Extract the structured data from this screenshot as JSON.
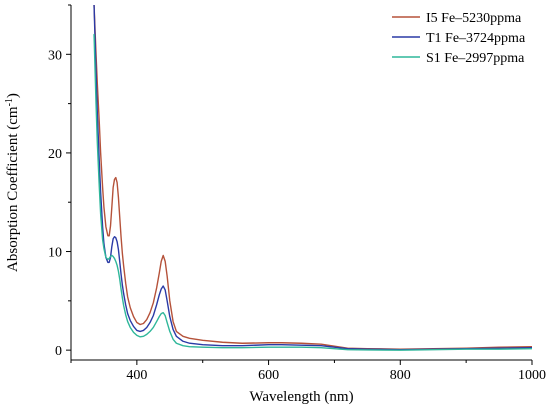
{
  "chart_data": {
    "type": "line",
    "xlabel": "Wavelength (nm)",
    "ylabel_main": "Absorption Coefficient (cm",
    "ylabel_sup": "-1",
    "ylabel_end": ")",
    "xlim": [
      300,
      1000
    ],
    "ylim": [
      -1,
      35
    ],
    "xticks": [
      400,
      600,
      800,
      1000
    ],
    "yticks": [
      0,
      10,
      20,
      30
    ],
    "grid": false,
    "legend_position": "top-right",
    "series": [
      {
        "name": "I5  Fe–5230ppma",
        "color": "#b5523a",
        "x": [
          335,
          338,
          340,
          343,
          345,
          348,
          350,
          353,
          356,
          358,
          360,
          362,
          364,
          366,
          368,
          370,
          372,
          374,
          376,
          378,
          380,
          383,
          386,
          390,
          395,
          400,
          405,
          410,
          415,
          420,
          425,
          430,
          434,
          437,
          440,
          443,
          446,
          450,
          455,
          460,
          470,
          480,
          500,
          530,
          560,
          600,
          620,
          650,
          680,
          700,
          720,
          750,
          800,
          850,
          900,
          950,
          1000
        ],
        "y": [
          35,
          30,
          27,
          23,
          20,
          16.5,
          14.5,
          12.5,
          11.6,
          11.6,
          12.6,
          14.5,
          16.5,
          17.3,
          17.5,
          17,
          15.5,
          13.5,
          11.5,
          9.8,
          8.5,
          6.8,
          5.4,
          4.3,
          3.4,
          2.8,
          2.6,
          2.7,
          3.1,
          3.8,
          4.8,
          6.3,
          7.8,
          9,
          9.6,
          9,
          7.5,
          5,
          2.9,
          1.9,
          1.4,
          1.2,
          1,
          0.8,
          0.7,
          0.75,
          0.75,
          0.7,
          0.6,
          0.4,
          0.2,
          0.15,
          0.1,
          0.15,
          0.2,
          0.3,
          0.35
        ]
      },
      {
        "name": "T1  Fe–3724ppma",
        "color": "#2a3aa6",
        "x": [
          335,
          338,
          340,
          343,
          345,
          348,
          350,
          353,
          356,
          358,
          360,
          362,
          364,
          366,
          368,
          370,
          372,
          374,
          376,
          378,
          380,
          383,
          386,
          390,
          395,
          400,
          405,
          410,
          415,
          420,
          425,
          430,
          434,
          437,
          440,
          443,
          446,
          450,
          455,
          460,
          470,
          480,
          500,
          530,
          560,
          600,
          620,
          650,
          680,
          700,
          720,
          750,
          800,
          850,
          900,
          950,
          1000
        ],
        "y": [
          35,
          28,
          24,
          19,
          16,
          12.5,
          10.8,
          9.4,
          8.9,
          8.9,
          9.4,
          10.5,
          11.3,
          11.5,
          11.4,
          11,
          10.2,
          9,
          7.7,
          6.6,
          5.7,
          4.6,
          3.7,
          3,
          2.4,
          2,
          1.9,
          2,
          2.3,
          2.8,
          3.5,
          4.6,
          5.6,
          6.2,
          6.5,
          6.1,
          5,
          3.4,
          2.1,
          1.4,
          0.9,
          0.7,
          0.55,
          0.45,
          0.45,
          0.55,
          0.55,
          0.5,
          0.45,
          0.3,
          0.15,
          0.1,
          0.05,
          0.1,
          0.15,
          0.2,
          0.25
        ]
      },
      {
        "name": "S1  Fe–2997ppma",
        "color": "#2fb79a",
        "x": [
          335,
          338,
          340,
          343,
          345,
          348,
          350,
          353,
          356,
          358,
          360,
          362,
          364,
          366,
          368,
          370,
          372,
          374,
          376,
          378,
          380,
          383,
          386,
          390,
          395,
          400,
          405,
          410,
          415,
          420,
          425,
          430,
          434,
          437,
          440,
          443,
          446,
          450,
          455,
          460,
          470,
          480,
          500,
          530,
          560,
          600,
          620,
          650,
          680,
          700,
          720,
          750,
          800,
          850,
          900,
          950,
          1000
        ],
        "y": [
          32,
          25,
          21,
          16.5,
          13.8,
          11.2,
          10.3,
          9.4,
          9.2,
          9.3,
          9.5,
          9.6,
          9.5,
          9.3,
          9,
          8.6,
          8,
          7.2,
          6.2,
          5.3,
          4.5,
          3.6,
          2.9,
          2.3,
          1.8,
          1.5,
          1.35,
          1.4,
          1.6,
          1.9,
          2.3,
          2.9,
          3.4,
          3.7,
          3.8,
          3.5,
          2.8,
          1.9,
          1.1,
          0.7,
          0.45,
          0.35,
          0.3,
          0.25,
          0.25,
          0.3,
          0.3,
          0.3,
          0.25,
          0.15,
          0.05,
          0.02,
          0,
          0.05,
          0.1,
          0.1,
          0.15
        ]
      }
    ]
  }
}
